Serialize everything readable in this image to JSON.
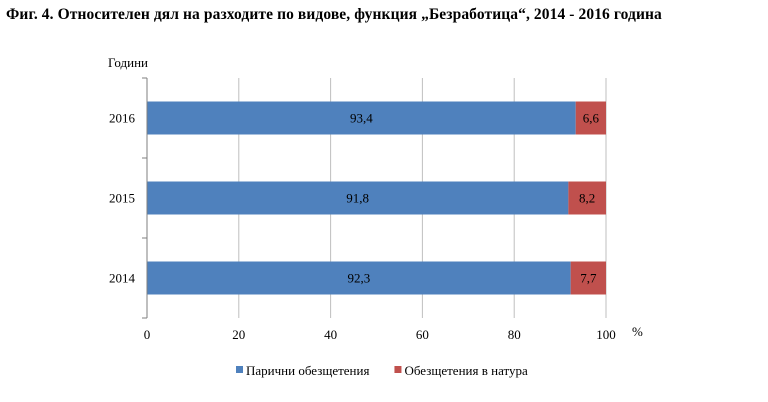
{
  "chart_data": {
    "type": "bar",
    "orientation": "horizontal",
    "stacked": true,
    "title": "Фиг. 4. Относителен дял на разходите по видове, функция „Безработица“, 2014 - 2016 година",
    "ylabel": "Години",
    "xlabel": "%",
    "categories": [
      "2016",
      "2015",
      "2014"
    ],
    "series": [
      {
        "name": "Парични обезщетения",
        "values": [
          93.4,
          91.8,
          92.3
        ],
        "labels": [
          "93,4",
          "91,8",
          "92,3"
        ],
        "color": "#4f81bd"
      },
      {
        "name": "Обезщетения в натура",
        "values": [
          6.6,
          8.2,
          7.7
        ],
        "labels": [
          "6,6",
          "8,2",
          "7,7"
        ],
        "color": "#c0504d"
      }
    ],
    "xlim": [
      0,
      100
    ],
    "xticks": [
      "0",
      "20",
      "40",
      "60",
      "80",
      "100"
    ],
    "grid": true,
    "legend": "bottom"
  }
}
